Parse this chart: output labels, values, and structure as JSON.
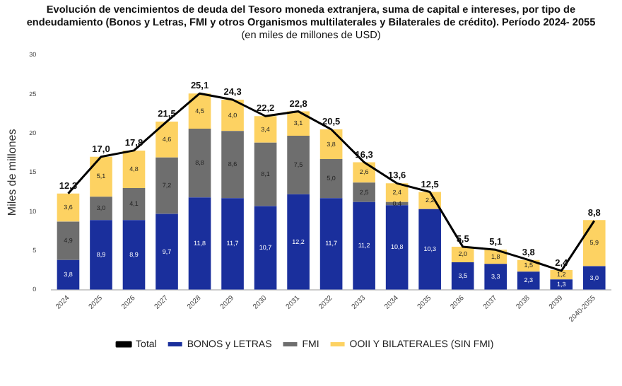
{
  "chart_data": {
    "type": "bar",
    "stacked": true,
    "title": "Evolución de vencimientos de deuda del Tesoro moneda extranjera, suma de capital e intereses, por tipo de endeudamiento (Bonos y Letras, FMI y otros Organismos multilaterales y Bilaterales de crédito). Período 2024- 2055",
    "subtitle": "(en miles de millones de USD)",
    "ylabel": "Miles de millones",
    "categories": [
      "2024",
      "2025",
      "2026",
      "2027",
      "2028",
      "2029",
      "2030",
      "2031",
      "2032",
      "2033",
      "2034",
      "2035",
      "2036",
      "2037",
      "2038",
      "2039",
      "2040-2055"
    ],
    "ylim": [
      0,
      30
    ],
    "yticks": [
      0,
      5,
      10,
      15,
      20,
      25,
      30
    ],
    "grid": false,
    "legend": "bottom",
    "series": [
      {
        "name": "BONOS y LETRAS",
        "color": "#1a2f9c",
        "values": [
          3.8,
          8.9,
          8.9,
          9.7,
          11.8,
          11.7,
          10.7,
          12.2,
          11.7,
          11.2,
          10.8,
          10.3,
          3.5,
          3.3,
          2.3,
          1.3,
          3.0
        ],
        "value_labels": [
          "3,8",
          "8,9",
          "8,9",
          "9,7",
          "11,8",
          "11,7",
          "10,7",
          "12,2",
          "11,7",
          "11,2",
          "10,8",
          "10,3",
          "3,5",
          "3,3",
          "2,3",
          "1,3",
          "3,0"
        ]
      },
      {
        "name": "FMI",
        "color": "#6e6e6e",
        "values": [
          4.9,
          3.0,
          4.1,
          7.2,
          8.8,
          8.6,
          8.1,
          7.5,
          5.0,
          2.5,
          0.4,
          null,
          null,
          null,
          null,
          null,
          null
        ],
        "value_labels": [
          "4,9",
          "3,0",
          "4,1",
          "7,2",
          "8,8",
          "8,6",
          "8,1",
          "7,5",
          "5,0",
          "2,5",
          "0,4",
          null,
          null,
          null,
          null,
          null,
          null
        ]
      },
      {
        "name": "OOII Y BILATERALES (SIN FMI)",
        "color": "#fdd262",
        "values": [
          3.6,
          5.1,
          4.8,
          4.6,
          4.5,
          4.0,
          3.4,
          3.1,
          3.8,
          2.6,
          2.4,
          2.2,
          2.0,
          1.8,
          1.5,
          1.2,
          5.9
        ],
        "value_labels": [
          "3,6",
          "5,1",
          "4,8",
          "4,6",
          "4,5",
          "4,0",
          "3,4",
          "3,1",
          "3,8",
          "2,6",
          "2,4",
          "2,2",
          "2,0",
          "1,8",
          "1,5",
          "1,2",
          "5,9"
        ]
      },
      {
        "name": "Total",
        "type": "line",
        "color": "#000000",
        "values": [
          12.3,
          17.0,
          17.8,
          21.5,
          25.1,
          24.3,
          22.2,
          22.8,
          20.5,
          16.3,
          13.6,
          12.5,
          5.5,
          5.1,
          3.8,
          2.4,
          8.8
        ],
        "value_labels": [
          "12,3",
          "17,0",
          "17,8",
          "21,5",
          "25,1",
          "24,3",
          "22,2",
          "22,8",
          "20,5",
          "16,3",
          "13,6",
          "12,5",
          "5,5",
          "5,1",
          "3,8",
          "2,4",
          "8,8"
        ]
      }
    ]
  }
}
